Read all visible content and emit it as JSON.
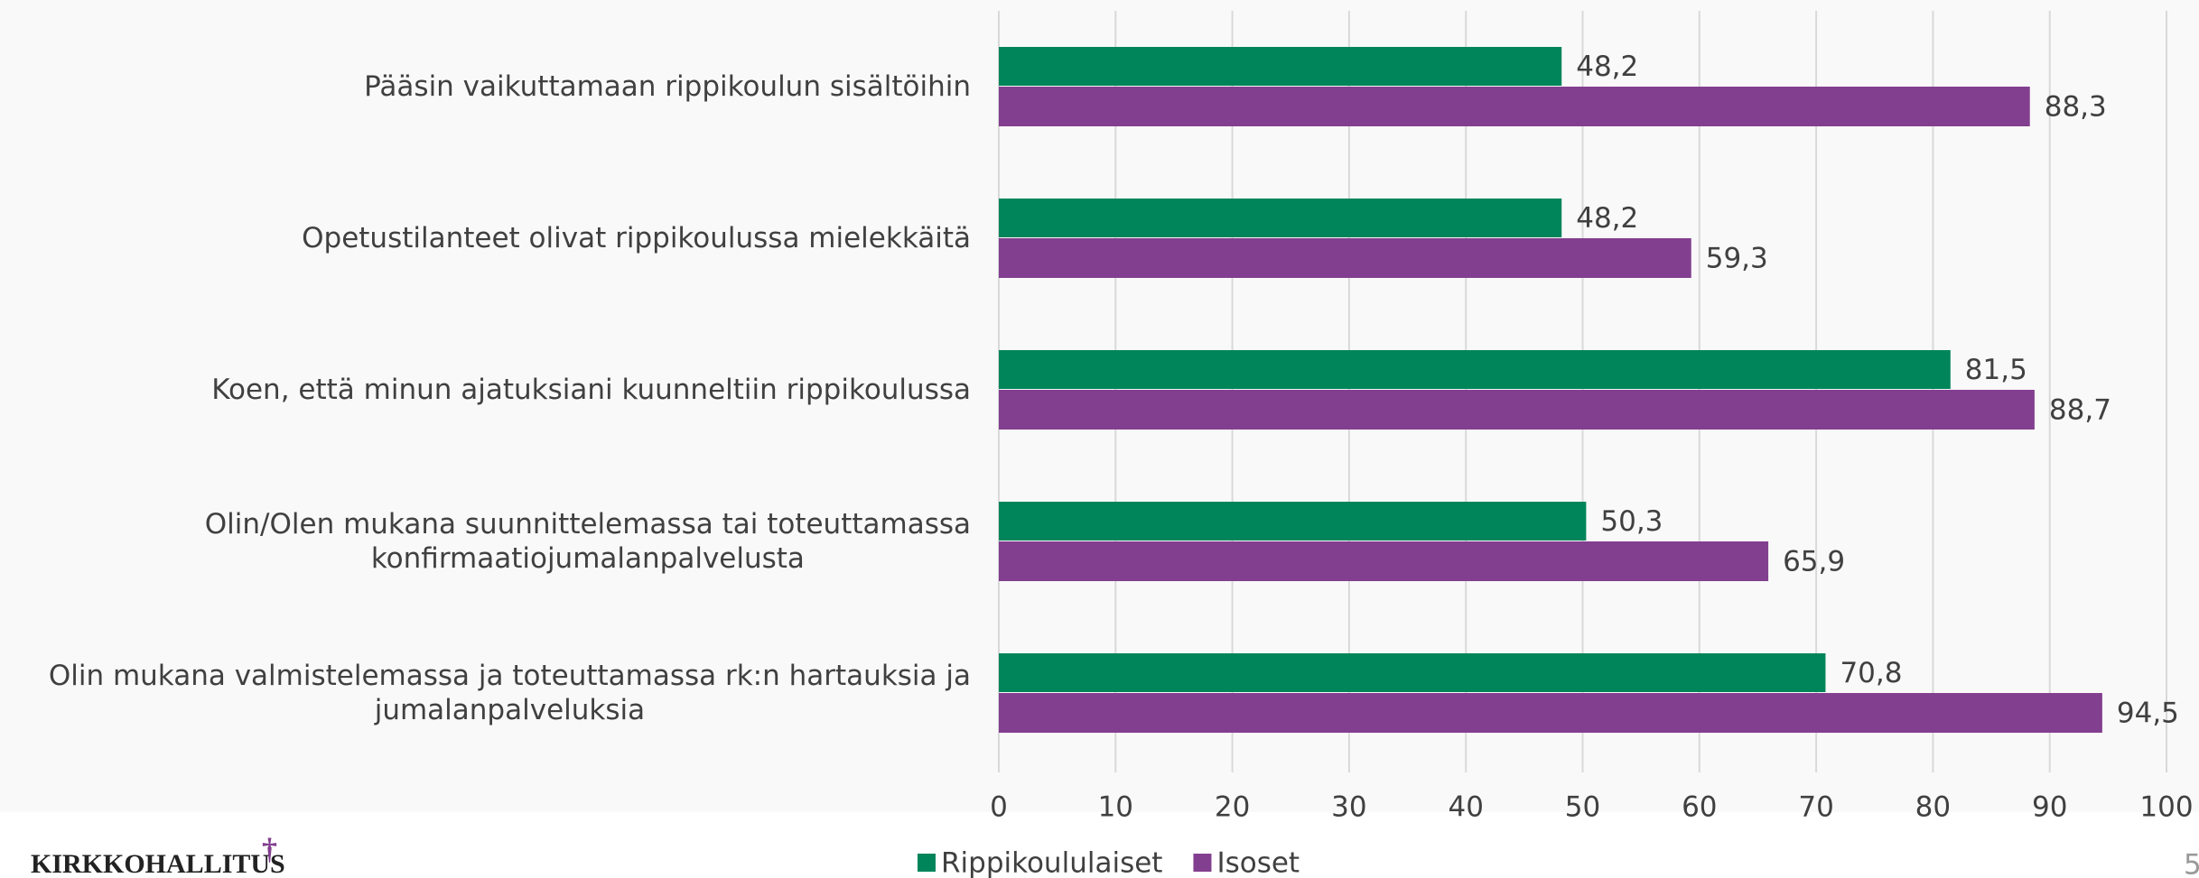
{
  "chart_data": {
    "type": "hbar",
    "categories": [
      "Pääsin vaikuttamaan rippikoulun sisältöihin",
      "Opetustilanteet olivat rippikoulussa mielekkäitä",
      "Koen, että minun ajatuksiani kuunneltiin rippikoulussa",
      "Olin/Olen mukana suunnittelemassa tai toteuttamassa\nkonfirmaatiojumalanpalvelusta",
      "Olin mukana valmistelemassa ja toteuttamassa rk:n hartauksia ja\njumalanpalveluksia"
    ],
    "series": [
      {
        "name": "Rippikoululaiset",
        "color": "#00855a",
        "values": [
          48.2,
          48.2,
          81.5,
          50.3,
          70.8
        ],
        "value_labels": [
          "48,2",
          "48,2",
          "81,5",
          "50,3",
          "70,8"
        ]
      },
      {
        "name": "Isoset",
        "color": "#833f8f",
        "values": [
          88.3,
          59.3,
          88.7,
          65.9,
          94.5
        ],
        "value_labels": [
          "88,3",
          "59,3",
          "88,7",
          "65,9",
          "94,5"
        ]
      }
    ],
    "xlim": [
      0,
      100
    ],
    "xticks": [
      0,
      10,
      20,
      30,
      40,
      50,
      60,
      70,
      80,
      90,
      100
    ],
    "grid": true,
    "legend": "bottom"
  },
  "footer": {
    "logo": "KIRKKOHALLITUS",
    "logo_mark": "†",
    "page_number": "5"
  }
}
